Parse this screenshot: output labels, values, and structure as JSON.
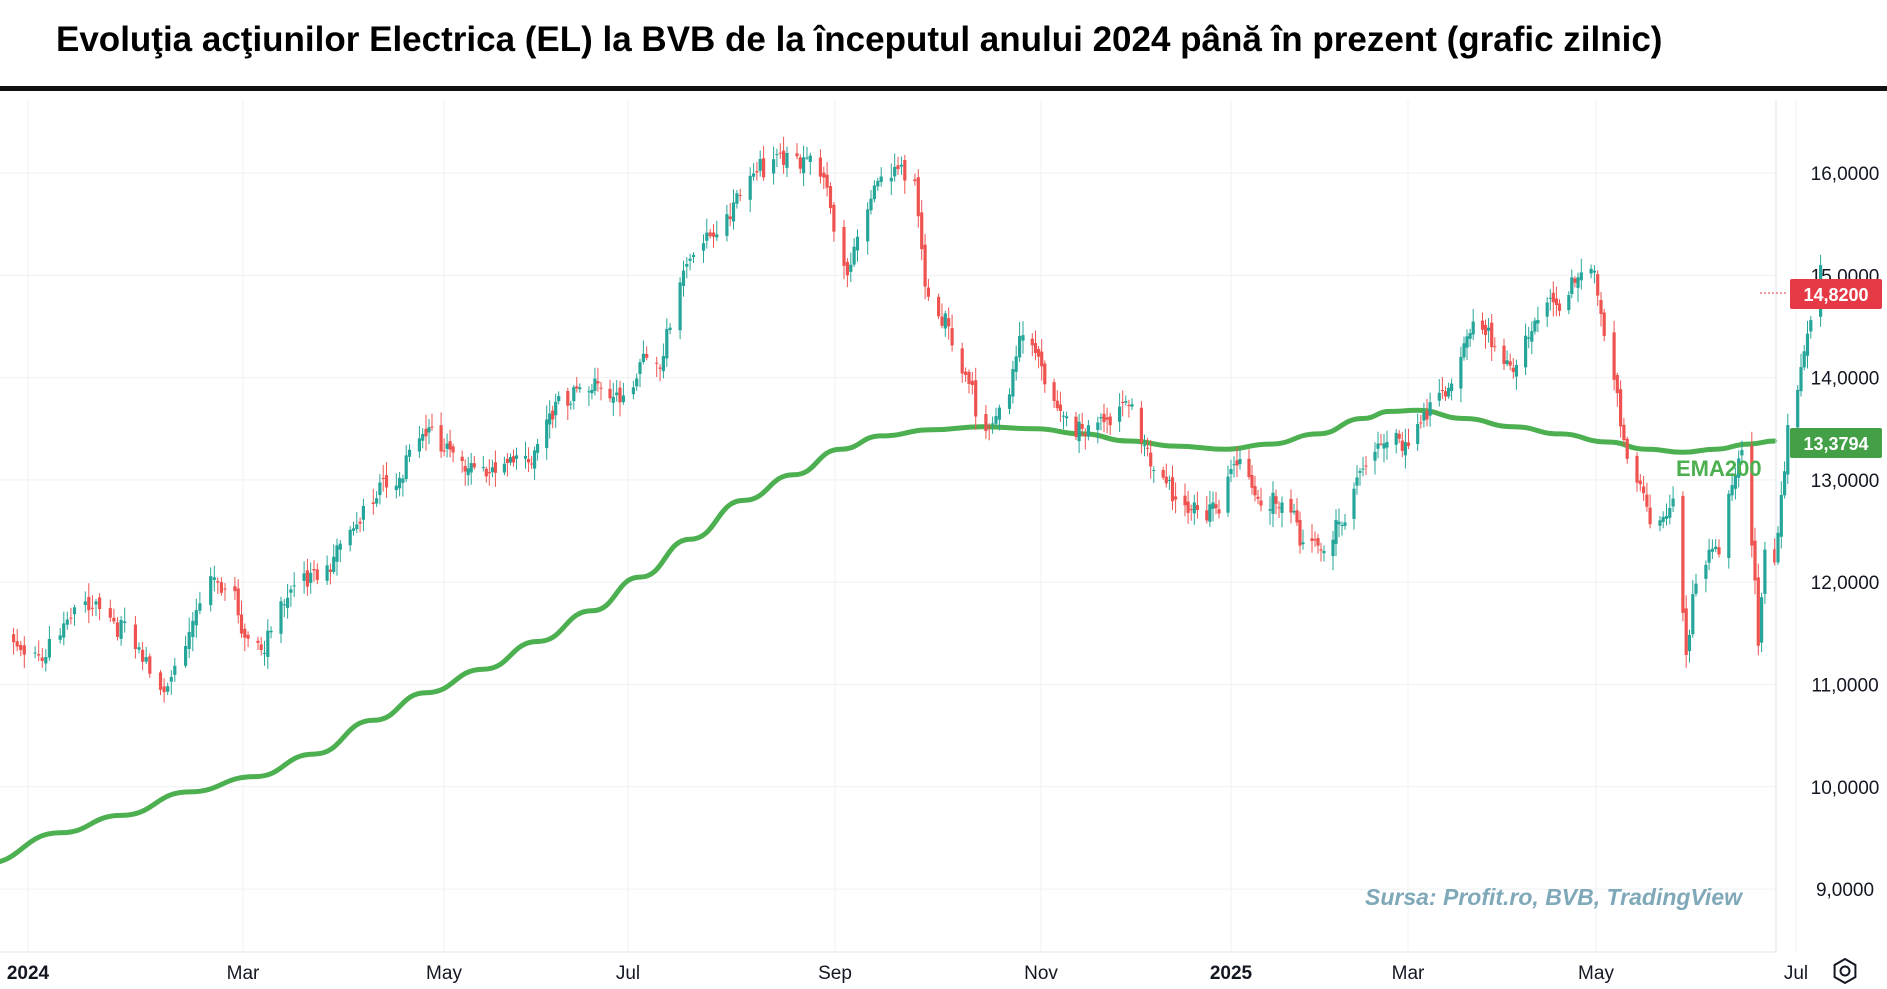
{
  "title": "Evoluţia acţiunilor Electrica (EL) la BVB de la începutul anului 2024 până în prezent (grafic zilnic)",
  "source_note": "Sursa: Profit.ro, BVB, TradingView",
  "colors": {
    "up": "#26a69a",
    "down": "#ef5350",
    "ema": "#4caf50",
    "price_badge": "#e53945",
    "ema_badge": "#43a047",
    "grid": "#eef0f3"
  },
  "icons": {
    "settings": "gear-icon"
  },
  "chart_data": {
    "type": "line",
    "chart_style": "candlestick with EMA200 overlay",
    "x_axis": {
      "tick_labels": [
        "2024",
        "Mar",
        "May",
        "Jul",
        "Sep",
        "Nov",
        "2025",
        "Mar",
        "May",
        "Jul"
      ],
      "tick_dates": [
        "2024-01-01",
        "2024-03-01",
        "2024-05-01",
        "2024-07-01",
        "2024-09-01",
        "2024-11-01",
        "2025-01-01",
        "2025-03-01",
        "2025-05-01",
        "2025-07-01"
      ],
      "range": [
        "2024-01-01",
        "2025-07-01"
      ]
    },
    "y_axis": {
      "tick_labels": [
        "16,0000",
        "15,0000",
        "14,0000",
        "13,0000",
        "12,0000",
        "11,0000",
        "10,0000",
        "9,0000"
      ],
      "ticks": [
        16,
        15,
        14,
        13,
        12,
        11,
        10,
        9
      ],
      "range": [
        8.4,
        16.8
      ],
      "side": "right",
      "decimal_separator": ","
    },
    "grid": true,
    "price_series": {
      "name": "EL",
      "close_points": [
        [
          "2024-01-02",
          11.45
        ],
        [
          "2024-01-10",
          11.3
        ],
        [
          "2024-01-17",
          11.55
        ],
        [
          "2024-01-24",
          11.85
        ],
        [
          "2024-01-31",
          11.6
        ],
        [
          "2024-02-07",
          11.2
        ],
        [
          "2024-02-12",
          10.9
        ],
        [
          "2024-02-19",
          11.5
        ],
        [
          "2024-02-26",
          11.95
        ],
        [
          "2024-03-04",
          11.8
        ],
        [
          "2024-03-08",
          11.45
        ],
        [
          "2024-03-13",
          11.4
        ],
        [
          "2024-03-20",
          11.8
        ],
        [
          "2024-03-27",
          12.1
        ],
        [
          "2024-04-03",
          12.25
        ],
        [
          "2024-04-10",
          12.5
        ],
        [
          "2024-04-17",
          13.0
        ],
        [
          "2024-04-24",
          13.1
        ],
        [
          "2024-05-02",
          13.45
        ],
        [
          "2024-05-09",
          13.35
        ],
        [
          "2024-05-16",
          13.1
        ],
        [
          "2024-05-23",
          13.0
        ],
        [
          "2024-05-30",
          13.3
        ],
        [
          "2024-06-06",
          13.2
        ],
        [
          "2024-06-13",
          13.65
        ],
        [
          "2024-06-20",
          13.95
        ],
        [
          "2024-06-27",
          13.9
        ],
        [
          "2024-07-04",
          13.7
        ],
        [
          "2024-07-11",
          14.3
        ],
        [
          "2024-07-17",
          14.2
        ],
        [
          "2024-07-22",
          14.9
        ],
        [
          "2024-07-29",
          15.4
        ],
        [
          "2024-08-05",
          15.6
        ],
        [
          "2024-08-12",
          15.9
        ],
        [
          "2024-08-19",
          16.2
        ],
        [
          "2024-08-26",
          16.2
        ],
        [
          "2024-09-02",
          15.95
        ],
        [
          "2024-09-06",
          15.5
        ],
        [
          "2024-09-10",
          15.1
        ],
        [
          "2024-09-16",
          15.75
        ],
        [
          "2024-09-23",
          15.95
        ],
        [
          "2024-09-30",
          15.95
        ],
        [
          "2024-10-03",
          14.95
        ],
        [
          "2024-10-09",
          14.5
        ],
        [
          "2024-10-15",
          13.9
        ],
        [
          "2024-10-21",
          13.6
        ],
        [
          "2024-10-28",
          13.9
        ],
        [
          "2024-11-01",
          14.4
        ],
        [
          "2024-11-07",
          14.0
        ],
        [
          "2024-11-14",
          13.7
        ],
        [
          "2024-11-21",
          13.4
        ],
        [
          "2024-11-28",
          13.55
        ],
        [
          "2024-12-05",
          13.85
        ],
        [
          "2024-12-12",
          13.1
        ],
        [
          "2024-12-19",
          12.9
        ],
        [
          "2025-01-03",
          12.65
        ],
        [
          "2025-01-10",
          13.3
        ],
        [
          "2025-01-17",
          12.85
        ],
        [
          "2025-01-24",
          12.7
        ],
        [
          "2025-01-31",
          12.45
        ],
        [
          "2025-02-07",
          12.4
        ],
        [
          "2025-02-14",
          12.55
        ],
        [
          "2025-02-21",
          13.25
        ],
        [
          "2025-02-28",
          13.45
        ],
        [
          "2025-03-07",
          13.2
        ],
        [
          "2025-03-14",
          13.8
        ],
        [
          "2025-03-21",
          13.95
        ],
        [
          "2025-03-28",
          14.5
        ],
        [
          "2025-04-04",
          14.3
        ],
        [
          "2025-04-11",
          14.15
        ],
        [
          "2025-04-18",
          14.55
        ],
        [
          "2025-04-25",
          14.75
        ],
        [
          "2025-05-01",
          15.1
        ],
        [
          "2025-05-06",
          14.95
        ],
        [
          "2025-05-09",
          14.3
        ],
        [
          "2025-05-13",
          13.8
        ],
        [
          "2025-05-16",
          13.3
        ],
        [
          "2025-05-20",
          13.0
        ],
        [
          "2025-05-23",
          12.7
        ],
        [
          "2025-05-27",
          12.5
        ],
        [
          "2025-05-30",
          12.7
        ],
        [
          "2025-06-03",
          11.2
        ],
        [
          "2025-06-05",
          11.9
        ],
        [
          "2025-06-10",
          12.35
        ],
        [
          "2025-06-13",
          12.4
        ],
        [
          "2025-06-17",
          12.9
        ],
        [
          "2025-06-20",
          13.2
        ],
        [
          "2025-06-23",
          12.3
        ],
        [
          "2025-06-25",
          11.5
        ],
        [
          "2025-06-27",
          12.4
        ],
        [
          "2025-06-30",
          12.3
        ],
        [
          "2025-07-02",
          12.9
        ],
        [
          "2025-07-04",
          13.4
        ],
        [
          "2025-07-08",
          14.0
        ],
        [
          "2025-07-11",
          14.5
        ],
        [
          "2025-07-14",
          15.0
        ]
      ]
    },
    "ema_series": {
      "name": "EMA200",
      "points": [
        [
          "2023-12-25",
          9.25
        ],
        [
          "2024-01-15",
          9.55
        ],
        [
          "2024-02-01",
          9.72
        ],
        [
          "2024-02-20",
          9.95
        ],
        [
          "2024-03-10",
          10.1
        ],
        [
          "2024-03-28",
          10.32
        ],
        [
          "2024-04-15",
          10.65
        ],
        [
          "2024-05-01",
          10.92
        ],
        [
          "2024-05-20",
          11.15
        ],
        [
          "2024-06-07",
          11.42
        ],
        [
          "2024-06-25",
          11.72
        ],
        [
          "2024-07-10",
          12.05
        ],
        [
          "2024-07-25",
          12.42
        ],
        [
          "2024-08-10",
          12.8
        ],
        [
          "2024-08-25",
          13.05
        ],
        [
          "2024-09-08",
          13.3
        ],
        [
          "2024-09-20",
          13.43
        ],
        [
          "2024-10-05",
          13.49
        ],
        [
          "2024-10-20",
          13.52
        ],
        [
          "2024-11-05",
          13.5
        ],
        [
          "2024-11-20",
          13.45
        ],
        [
          "2024-12-05",
          13.38
        ],
        [
          "2024-12-20",
          13.33
        ],
        [
          "2025-01-05",
          13.3
        ],
        [
          "2025-01-20",
          13.35
        ],
        [
          "2025-02-05",
          13.45
        ],
        [
          "2025-02-20",
          13.6
        ],
        [
          "2025-03-01",
          13.67
        ],
        [
          "2025-03-10",
          13.68
        ],
        [
          "2025-03-25",
          13.6
        ],
        [
          "2025-04-10",
          13.52
        ],
        [
          "2025-04-25",
          13.45
        ],
        [
          "2025-05-10",
          13.37
        ],
        [
          "2025-05-22",
          13.3
        ],
        [
          "2025-06-02",
          13.27
        ],
        [
          "2025-06-12",
          13.3
        ],
        [
          "2025-06-22",
          13.35
        ],
        [
          "2025-06-30",
          13.38
        ]
      ]
    },
    "last_price_label": "14,8200",
    "last_price": 14.82,
    "ema_value_label": "13,3794",
    "ema_value": 13.3794,
    "series_labels": [
      "EMA200"
    ]
  }
}
